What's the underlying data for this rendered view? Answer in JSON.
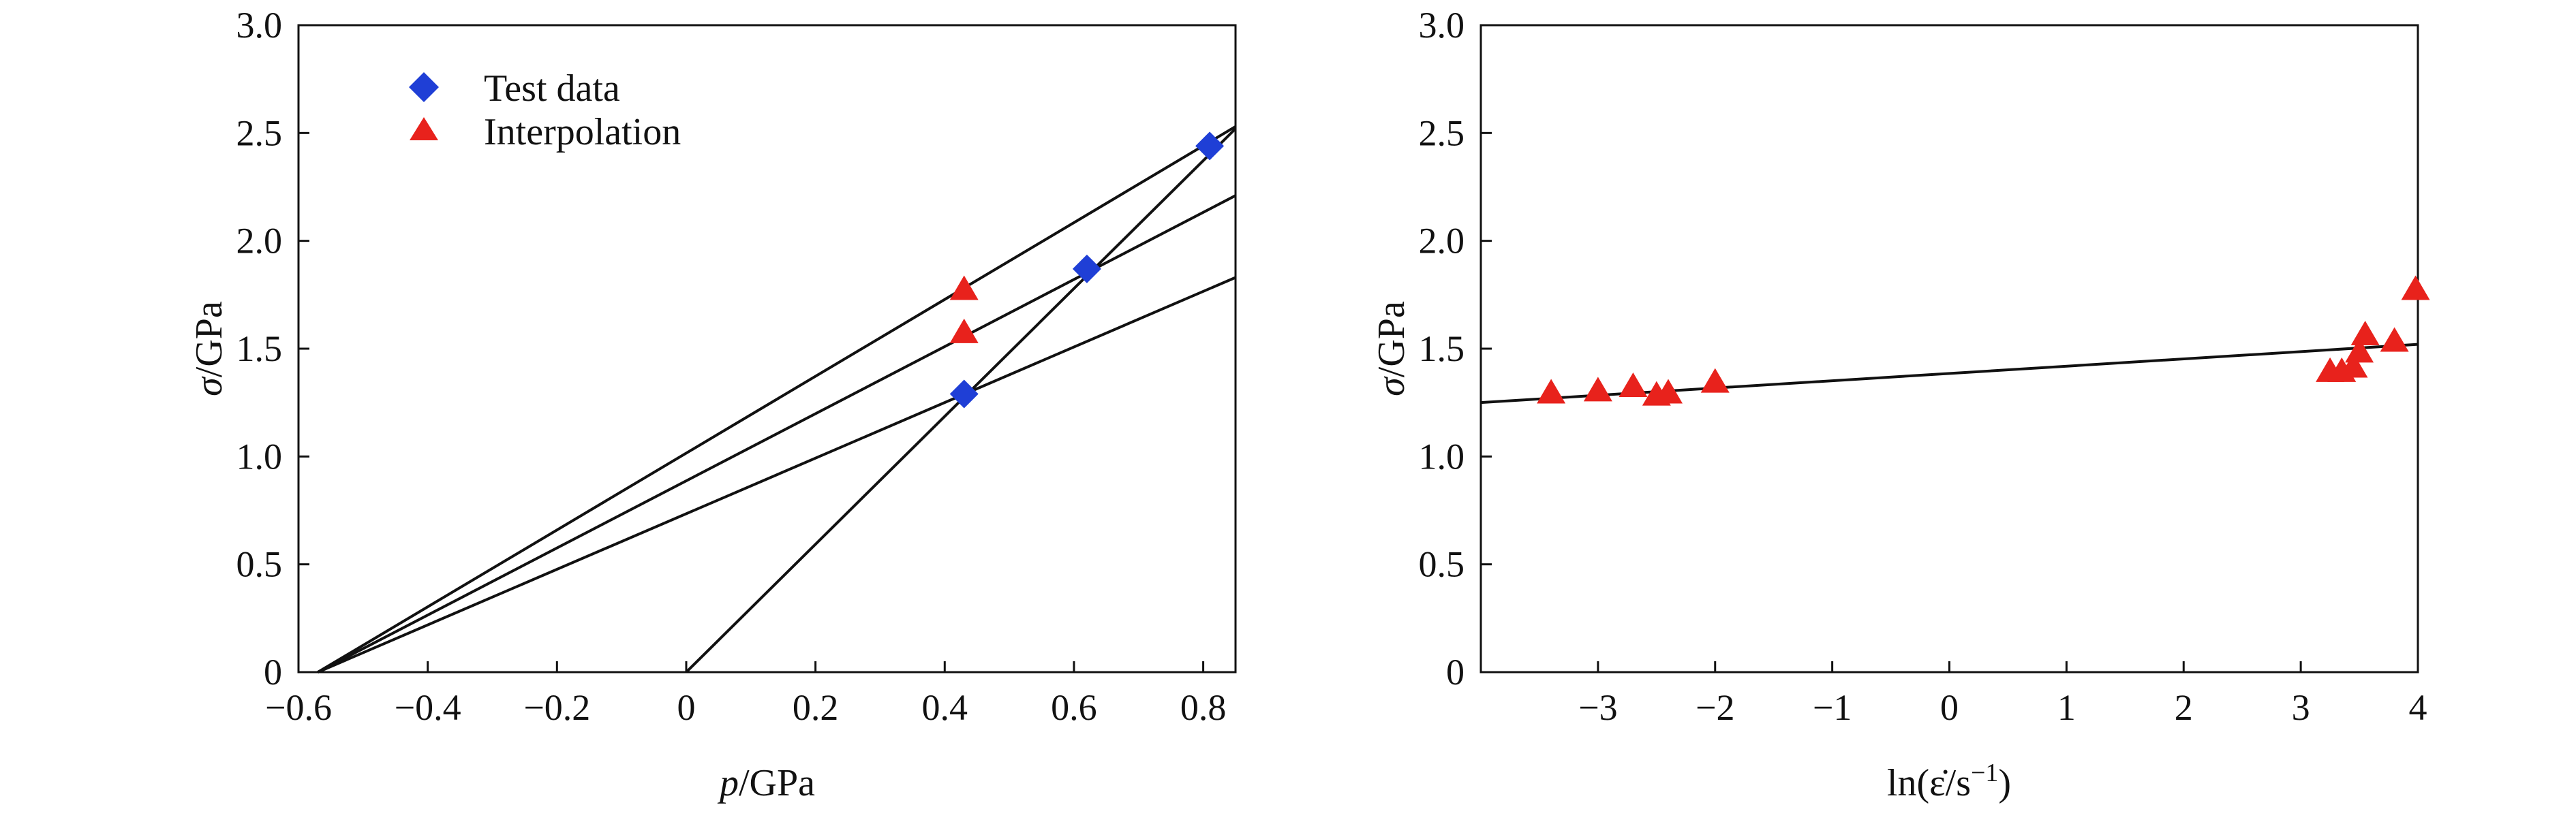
{
  "colors": {
    "test_data": "#1f3fd6",
    "interpolation": "#e8221c",
    "line": "#111111"
  },
  "chart_data": [
    {
      "type": "scatter",
      "xlabel_var": "p",
      "xlabel_unit": "/GPa",
      "ylabel_var": "σ",
      "ylabel_unit": "/GPa",
      "xlim": [
        -0.6,
        0.85
      ],
      "ylim": [
        0,
        3.0
      ],
      "xticks": [
        -0.6,
        -0.4,
        -0.2,
        0,
        0.2,
        0.4,
        0.6,
        0.8
      ],
      "xtick_labels": [
        "−0.6",
        "−0.4",
        "−0.2",
        "0",
        "0.2",
        "0.4",
        "0.6",
        "0.8"
      ],
      "yticks": [
        0,
        0.5,
        1.0,
        1.5,
        2.0,
        2.5,
        3.0
      ],
      "ytick_labels": [
        "0",
        "0.5",
        "1.0",
        "1.5",
        "2.0",
        "2.5",
        "3.0"
      ],
      "legend_position": "top-left",
      "series": [
        {
          "name": "Test data",
          "marker": "diamond",
          "points": [
            [
              0.43,
              1.29
            ],
            [
              0.62,
              1.87
            ],
            [
              0.81,
              2.44
            ]
          ]
        },
        {
          "name": "Interpolation",
          "marker": "triangle",
          "points": [
            [
              0.43,
              1.77
            ],
            [
              0.43,
              1.57
            ]
          ]
        }
      ],
      "lines": [
        {
          "x": [
            -0.57,
            0.85
          ],
          "y": [
            0,
            2.53
          ]
        },
        {
          "x": [
            -0.57,
            0.85
          ],
          "y": [
            0,
            2.21
          ]
        },
        {
          "x": [
            -0.57,
            0.85
          ],
          "y": [
            0,
            1.83
          ]
        },
        {
          "x": [
            0.0,
            0.85
          ],
          "y": [
            0,
            2.52
          ]
        }
      ]
    },
    {
      "type": "scatter",
      "xlabel_text": "ln(ε̇/s",
      "xlabel_sup": "−1",
      "xlabel_close": ")",
      "ylabel_var": "σ",
      "ylabel_unit": "/GPa",
      "xlim": [
        -4.0,
        4.0
      ],
      "ylim": [
        0,
        3.0
      ],
      "xticks": [
        -3,
        -2,
        -1,
        0,
        1,
        2,
        3,
        4
      ],
      "xtick_labels": [
        "−3",
        "−2",
        "−1",
        "0",
        "1",
        "2",
        "3",
        "4"
      ],
      "yticks": [
        0,
        0.5,
        1.0,
        1.5,
        2.0,
        2.5,
        3.0
      ],
      "ytick_labels": [
        "0",
        "0.5",
        "1.0",
        "1.5",
        "2.0",
        "2.5",
        "3.0"
      ],
      "series": [
        {
          "name": "Interpolation",
          "marker": "triangle",
          "points": [
            [
              -3.4,
              1.29
            ],
            [
              -3.0,
              1.3
            ],
            [
              -2.7,
              1.32
            ],
            [
              -2.5,
              1.28
            ],
            [
              -2.4,
              1.29
            ],
            [
              -2.0,
              1.34
            ],
            [
              3.25,
              1.39
            ],
            [
              3.35,
              1.39
            ],
            [
              3.45,
              1.41
            ],
            [
              3.5,
              1.48
            ],
            [
              3.55,
              1.56
            ],
            [
              3.8,
              1.53
            ],
            [
              3.98,
              1.77
            ]
          ]
        }
      ],
      "lines": [
        {
          "x": [
            -4.0,
            4.0
          ],
          "y": [
            1.25,
            1.52
          ]
        }
      ]
    }
  ]
}
